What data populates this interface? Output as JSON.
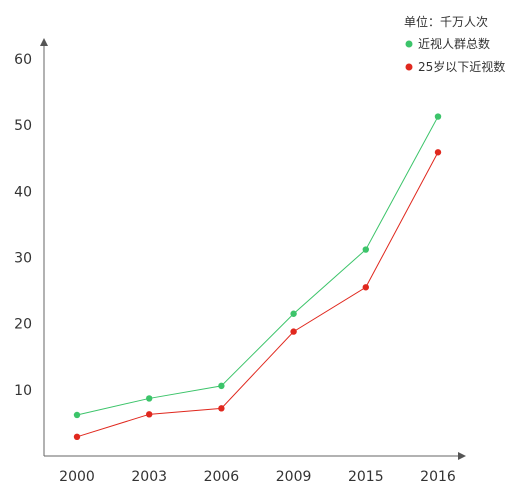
{
  "chart_data": {
    "type": "line",
    "title": "",
    "xlabel": "",
    "ylabel": "",
    "unit_note": "单位：千万人次",
    "categories": [
      "2000",
      "2003",
      "2006",
      "2009",
      "2015",
      "2016"
    ],
    "ylim": [
      0,
      60
    ],
    "yticks": [
      10,
      20,
      30,
      40,
      50,
      60
    ],
    "grid": false,
    "legend_position": "top-right",
    "series": [
      {
        "name": "近视人群总数",
        "color": "#3cc46a",
        "values": [
          6.2,
          8.7,
          10.6,
          21.5,
          31.2,
          51.3
        ]
      },
      {
        "name": "25岁以下近视数",
        "color": "#e0281e",
        "values": [
          2.9,
          6.3,
          7.2,
          18.8,
          25.5,
          45.9
        ]
      }
    ]
  }
}
